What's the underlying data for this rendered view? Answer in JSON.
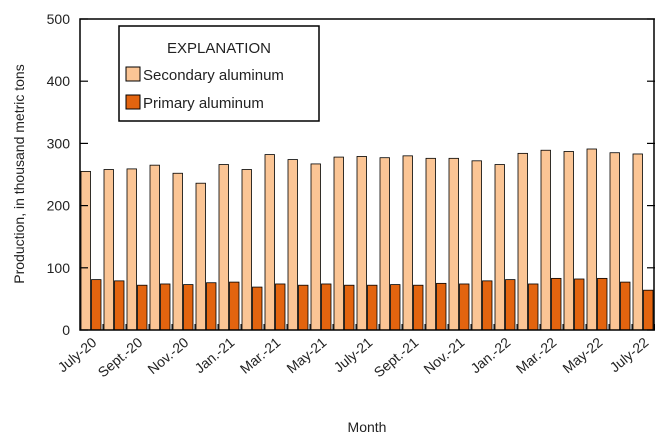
{
  "chart_data": {
    "type": "bar",
    "ylabel": "Production, in thousand metric tons",
    "xlabel": "Month",
    "ylim": [
      0,
      500
    ],
    "yticks": [
      0,
      100,
      200,
      300,
      400,
      500
    ],
    "x_tick_labels": [
      "July-20",
      "Sept.-20",
      "Nov.-20",
      "Jan.-21",
      "Mar.-21",
      "May-21",
      "July-21",
      "Sept.-21",
      "Nov.-21",
      "Jan.-22",
      "Mar.-22",
      "May-22",
      "July-22"
    ],
    "x_tick_every": 2,
    "legend": {
      "title": "EXPLANATION",
      "placement": "top-left"
    },
    "series": [
      {
        "name": "Secondary aluminum",
        "color": "#fbc595",
        "values": [
          255,
          258,
          259,
          265,
          252,
          236,
          266,
          258,
          282,
          274,
          267,
          278,
          279,
          277,
          280,
          276,
          276,
          272,
          266,
          284,
          289,
          287,
          291,
          285,
          283
        ]
      },
      {
        "name": "Primary aluminum",
        "color": "#e3640f",
        "values": [
          81,
          79,
          72,
          74,
          73,
          76,
          77,
          69,
          74,
          72,
          74,
          72,
          72,
          73,
          72,
          75,
          74,
          79,
          81,
          74,
          83,
          82,
          83,
          77,
          64
        ]
      }
    ]
  }
}
